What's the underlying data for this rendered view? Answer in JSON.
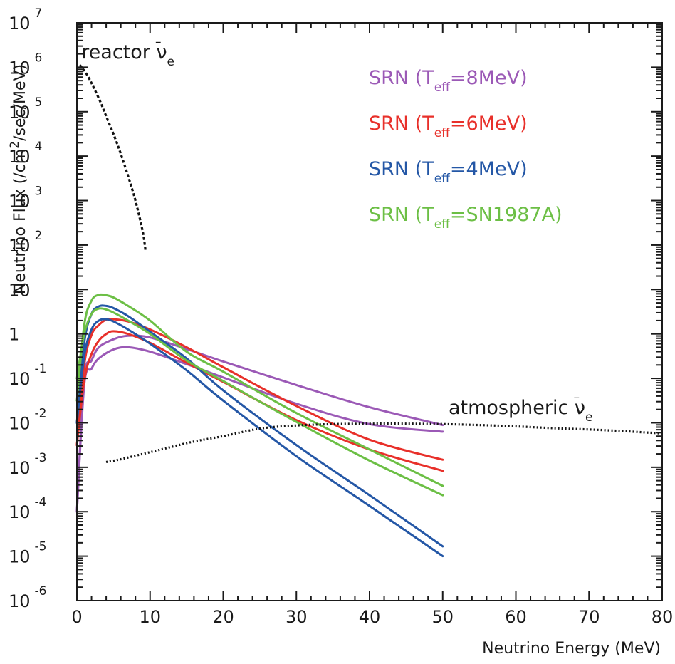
{
  "chart_data": {
    "type": "line",
    "title": "",
    "xlabel": "Neutrino Energy (MeV)",
    "ylabel": "Neutrino Flux (/cm²/sec/MeV)",
    "ylabel_parts": {
      "prefix": "Neutrino Flux (/cm",
      "sup": "2",
      "suffix": "/sec/MeV)"
    },
    "xlim": [
      0,
      80
    ],
    "ylim_log10": [
      -6,
      7
    ],
    "x_ticks": [
      "0",
      "10",
      "20",
      "30",
      "40",
      "50",
      "60",
      "70",
      "80"
    ],
    "y_ticks": [
      {
        "base": "10",
        "exp": "-6"
      },
      {
        "base": "10",
        "exp": "-5"
      },
      {
        "base": "10",
        "exp": "-4"
      },
      {
        "base": "10",
        "exp": "-3"
      },
      {
        "base": "10",
        "exp": "-2"
      },
      {
        "base": "10",
        "exp": "-1"
      },
      {
        "base": "1",
        "exp": ""
      },
      {
        "base": "10",
        "exp": ""
      },
      {
        "base": "10",
        "exp": "2"
      },
      {
        "base": "10",
        "exp": "3"
      },
      {
        "base": "10",
        "exp": "4"
      },
      {
        "base": "10",
        "exp": "5"
      },
      {
        "base": "10",
        "exp": "6"
      },
      {
        "base": "10",
        "exp": "7"
      }
    ],
    "legend": [
      {
        "prefix": "SRN (T",
        "sub": "eff",
        "suffix": "=8MeV)",
        "color": "#9b59b6"
      },
      {
        "prefix": "SRN (T",
        "sub": "eff",
        "suffix": "=6MeV)",
        "color": "#e8302a"
      },
      {
        "prefix": "SRN (T",
        "sub": "eff",
        "suffix": "=4MeV)",
        "color": "#2457a6"
      },
      {
        "prefix": "SRN (T",
        "sub": "eff",
        "suffix": "=SN1987A)",
        "color": "#6cbf45"
      }
    ],
    "annotations": [
      {
        "id": "reactor",
        "text": "reactor ν",
        "overbar": "–",
        "sub": "e",
        "x": 0.6,
        "y_log": 6.2
      },
      {
        "id": "atmospheric",
        "text": "atmospheric ν",
        "overbar": "–",
        "sub": "e",
        "x": 50.8,
        "y_log": -1.8
      }
    ],
    "series": [
      {
        "name": "SRN 8MeV upper",
        "color": "#9b59b6",
        "style": "solid",
        "x": [
          0,
          1,
          2,
          3,
          5,
          7,
          10,
          15,
          20,
          30,
          40,
          50
        ],
        "y_log": [
          -4.0,
          -1.0,
          -0.6,
          -0.3,
          -0.12,
          -0.04,
          -0.08,
          -0.34,
          -0.62,
          -1.15,
          -1.65,
          -2.05
        ]
      },
      {
        "name": "SRN 8MeV lower",
        "color": "#9b59b6",
        "style": "solid",
        "x": [
          0,
          1,
          2,
          3,
          5,
          7,
          10,
          15,
          20,
          30,
          40,
          50
        ],
        "y_log": [
          -4.0,
          -1.15,
          -0.78,
          -0.55,
          -0.35,
          -0.3,
          -0.4,
          -0.68,
          -0.98,
          -1.57,
          -2.03,
          -2.2
        ]
      },
      {
        "name": "SRN 6MeV upper",
        "color": "#e8302a",
        "style": "solid",
        "x": [
          0,
          1,
          2,
          3,
          4,
          5,
          7,
          10,
          15,
          20,
          30,
          40,
          50
        ],
        "y_log": [
          -2.5,
          -0.7,
          -0.02,
          0.2,
          0.32,
          0.33,
          0.28,
          0.1,
          -0.3,
          -0.75,
          -1.62,
          -2.38,
          -2.83
        ]
      },
      {
        "name": "SRN 6MeV lower",
        "color": "#e8302a",
        "style": "solid",
        "x": [
          0,
          1,
          2,
          3,
          4,
          5,
          7,
          10,
          15,
          20,
          30,
          40,
          50
        ],
        "y_log": [
          -2.5,
          -1.05,
          -0.45,
          -0.15,
          0.0,
          0.06,
          0.0,
          -0.2,
          -0.65,
          -1.08,
          -1.94,
          -2.6,
          -3.08
        ]
      },
      {
        "name": "SRN 4MeV upper",
        "color": "#2457a6",
        "style": "solid",
        "x": [
          0,
          1,
          2,
          3,
          4,
          5,
          7,
          10,
          15,
          20,
          30,
          40,
          50
        ],
        "y_log": [
          -2.0,
          -0.2,
          0.45,
          0.62,
          0.63,
          0.58,
          0.4,
          0.05,
          -0.55,
          -1.27,
          -2.5,
          -3.63,
          -4.78
        ]
      },
      {
        "name": "SRN 4MeV lower",
        "color": "#2457a6",
        "style": "solid",
        "x": [
          0,
          1,
          2,
          3,
          4,
          5,
          7,
          10,
          15,
          20,
          30,
          40,
          50
        ],
        "y_log": [
          -2.0,
          -0.5,
          0.1,
          0.3,
          0.33,
          0.28,
          0.1,
          -0.22,
          -0.82,
          -1.5,
          -2.75,
          -3.87,
          -5.0
        ]
      },
      {
        "name": "SRN SN1987A upper",
        "color": "#6cbf45",
        "style": "solid",
        "x": [
          0,
          1,
          2,
          3,
          4,
          5,
          7,
          10,
          15,
          20,
          30,
          40,
          50
        ],
        "y_log": [
          -1.5,
          0.2,
          0.75,
          0.88,
          0.87,
          0.82,
          0.63,
          0.3,
          -0.4,
          -0.85,
          -1.78,
          -2.6,
          -3.42
        ]
      },
      {
        "name": "SRN SN1987A lower",
        "color": "#6cbf45",
        "style": "solid",
        "x": [
          0,
          1,
          2,
          3,
          4,
          5,
          7,
          10,
          15,
          20,
          30,
          40,
          50
        ],
        "y_log": [
          -1.0,
          0.0,
          0.45,
          0.57,
          0.55,
          0.48,
          0.3,
          0.0,
          -0.6,
          -1.06,
          -1.98,
          -2.85,
          -3.63
        ]
      },
      {
        "name": "reactor anti-nu_e",
        "color": "#111111",
        "style": "dashed",
        "x": [
          0.4,
          1.5,
          3,
          4,
          5,
          6,
          7,
          8,
          9,
          9.4
        ],
        "y_log": [
          6.05,
          5.8,
          5.3,
          4.9,
          4.5,
          4.05,
          3.55,
          3.0,
          2.3,
          1.85
        ]
      },
      {
        "name": "atmospheric anti-nu_e",
        "color": "#111111",
        "style": "dotted",
        "x": [
          4,
          6,
          9,
          12,
          16,
          20,
          25,
          30,
          35,
          40,
          45,
          50,
          55,
          60,
          65,
          70,
          75,
          80
        ],
        "y_log": [
          -2.88,
          -2.82,
          -2.7,
          -2.58,
          -2.42,
          -2.3,
          -2.13,
          -2.06,
          -2.03,
          -2.02,
          -2.02,
          -2.03,
          -2.05,
          -2.08,
          -2.12,
          -2.15,
          -2.19,
          -2.24
        ]
      }
    ]
  }
}
